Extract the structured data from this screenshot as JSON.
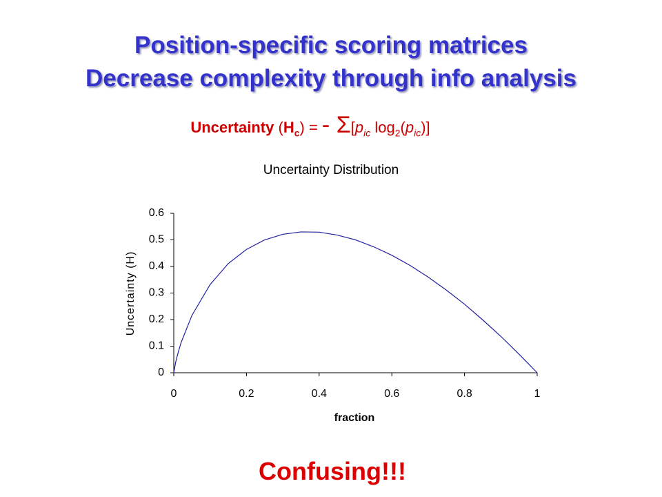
{
  "slide": {
    "title_lines": [
      "Position-specific scoring matrices",
      "Decrease complexity through info analysis"
    ],
    "formula": [
      {
        "text": "Uncertainty",
        "bold": true
      },
      {
        "text": " ("
      },
      {
        "text": "H",
        "bold": true
      },
      {
        "text": "c",
        "bold": true,
        "sub": true
      },
      {
        "text": ") = "
      },
      {
        "text": "-",
        "big": true
      },
      {
        "text": " Σ",
        "big": true
      },
      {
        "text": "["
      },
      {
        "text": "p",
        "italic": true
      },
      {
        "text": "ic",
        "italic": true,
        "sub": true
      },
      {
        "text": " log"
      },
      {
        "text": "2",
        "sub": true
      },
      {
        "text": "("
      },
      {
        "text": "p",
        "italic": true
      },
      {
        "text": "ic",
        "italic": true,
        "sub": true
      },
      {
        "text": ")]"
      }
    ],
    "footer": "Confusing!!!"
  },
  "chart_data": {
    "type": "line",
    "title": "Uncertainty Distribution",
    "x_label": "fraction",
    "y_label": "Uncertainty (H)",
    "x": [
      0,
      0.005,
      0.01,
      0.02,
      0.05,
      0.1,
      0.15,
      0.2,
      0.25,
      0.3,
      0.35,
      0.4,
      0.45,
      0.5,
      0.55,
      0.6,
      0.65,
      0.7,
      0.75,
      0.8,
      0.85,
      0.9,
      0.95,
      1
    ],
    "values": [
      0,
      0.038,
      0.066,
      0.113,
      0.216,
      0.332,
      0.411,
      0.464,
      0.5,
      0.521,
      0.53,
      0.529,
      0.518,
      0.5,
      0.474,
      0.442,
      0.404,
      0.36,
      0.311,
      0.258,
      0.199,
      0.137,
      0.07,
      0
    ],
    "color": "#1f1fa0",
    "xlim": [
      0,
      1
    ],
    "xticks": [
      0,
      0.2,
      0.4,
      0.6,
      0.8,
      1
    ],
    "ylim": [
      0,
      0.6
    ],
    "yticks": [
      0,
      0.1,
      0.2,
      0.3,
      0.4,
      0.5,
      0.6
    ]
  }
}
